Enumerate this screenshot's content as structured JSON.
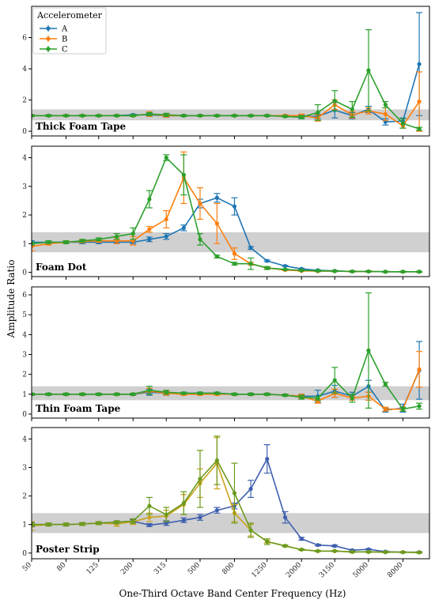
{
  "figure": {
    "ylabel": "Amplitude Ratio",
    "xlabel": "One-Third Octave Band Center Frequency (Hz)",
    "legend": {
      "title": "Accelerometer",
      "placement": "upper-left of first panel",
      "entries": [
        "A",
        "B",
        "C"
      ]
    }
  },
  "chart_data": [
    {
      "type": "line",
      "title": "Thick Foam Tape",
      "shaded_band": [
        0.7,
        1.4
      ],
      "ylim": [
        -0.3,
        8.0
      ],
      "yticks": [
        0,
        2,
        4,
        6
      ],
      "x": [
        50,
        63,
        80,
        100,
        125,
        160,
        200,
        250,
        315,
        400,
        500,
        630,
        800,
        1000,
        1250,
        1600,
        2000,
        2500,
        3150,
        4000,
        5000,
        6300,
        8000,
        10000
      ],
      "series": [
        {
          "name": "A",
          "color": "#1f77b4",
          "values": [
            1.0,
            1.0,
            1.0,
            1.0,
            1.0,
            1.0,
            1.05,
            1.05,
            1.0,
            1.0,
            1.0,
            1.0,
            1.0,
            1.0,
            1.0,
            1.0,
            0.95,
            0.95,
            1.35,
            1.0,
            1.4,
            0.6,
            0.65,
            4.3
          ],
          "err": [
            0.05,
            0.05,
            0.05,
            0.05,
            0.05,
            0.05,
            0.05,
            0.1,
            0.1,
            0.05,
            0.05,
            0.05,
            0.05,
            0.05,
            0.05,
            0.05,
            0.1,
            0.15,
            0.5,
            0.2,
            0.2,
            0.2,
            0.2,
            3.3
          ]
        },
        {
          "name": "B",
          "color": "#ff7f0e",
          "values": [
            1.0,
            1.0,
            1.0,
            1.0,
            1.0,
            1.0,
            1.0,
            1.1,
            1.0,
            1.0,
            1.0,
            1.0,
            1.0,
            1.0,
            1.0,
            1.0,
            1.0,
            0.85,
            1.7,
            1.05,
            1.3,
            1.1,
            0.35,
            1.9
          ],
          "err": [
            0.05,
            0.05,
            0.05,
            0.05,
            0.05,
            0.05,
            0.05,
            0.15,
            0.1,
            0.05,
            0.05,
            0.05,
            0.05,
            0.05,
            0.05,
            0.05,
            0.1,
            0.2,
            0.3,
            0.2,
            0.2,
            0.4,
            0.15,
            1.9
          ]
        },
        {
          "name": "C",
          "color": "#2ca02c",
          "values": [
            1.0,
            1.0,
            1.0,
            1.0,
            1.0,
            1.0,
            1.0,
            1.1,
            1.05,
            1.0,
            1.0,
            1.0,
            1.0,
            1.0,
            1.0,
            0.95,
            0.9,
            1.2,
            1.95,
            1.4,
            3.9,
            1.7,
            0.5,
            0.15
          ],
          "err": [
            0.05,
            0.05,
            0.05,
            0.05,
            0.05,
            0.05,
            0.05,
            0.1,
            0.1,
            0.05,
            0.05,
            0.05,
            0.05,
            0.05,
            0.05,
            0.05,
            0.1,
            0.5,
            0.65,
            0.5,
            2.6,
            0.2,
            0.3,
            0.1
          ]
        }
      ]
    },
    {
      "type": "line",
      "title": "Foam Dot",
      "shaded_band": [
        0.7,
        1.4
      ],
      "ylim": [
        -0.15,
        4.4
      ],
      "yticks": [
        0,
        1,
        2,
        3,
        4
      ],
      "x": [
        50,
        63,
        80,
        100,
        125,
        160,
        200,
        250,
        315,
        400,
        500,
        630,
        800,
        1000,
        1250,
        1600,
        2000,
        2500,
        3150,
        4000,
        5000,
        6300,
        8000,
        10000
      ],
      "series": [
        {
          "name": "A",
          "color": "#1f77b4",
          "values": [
            1.05,
            1.05,
            1.05,
            1.05,
            1.05,
            1.05,
            1.05,
            1.15,
            1.25,
            1.55,
            2.4,
            2.6,
            2.3,
            0.85,
            0.4,
            0.22,
            0.12,
            0.07,
            0.05,
            0.03,
            0.03,
            0.02,
            0.02,
            0.02
          ],
          "err": [
            0.05,
            0.05,
            0.05,
            0.05,
            0.05,
            0.05,
            0.05,
            0.08,
            0.1,
            0.1,
            0.15,
            0.15,
            0.3,
            0.05,
            0.03,
            0.02,
            0.02,
            0.02,
            0.02,
            0.02,
            0.02,
            0.02,
            0.02,
            0.02
          ]
        },
        {
          "name": "B",
          "color": "#ff7f0e",
          "values": [
            0.9,
            1.0,
            1.05,
            1.08,
            1.1,
            1.1,
            1.1,
            1.5,
            1.85,
            3.3,
            2.4,
            1.7,
            0.65,
            0.3,
            0.15,
            0.08,
            0.05,
            0.04,
            0.04,
            0.03,
            0.03,
            0.02,
            0.02,
            0.02
          ],
          "err": [
            0.15,
            0.05,
            0.05,
            0.05,
            0.05,
            0.1,
            0.15,
            0.1,
            0.3,
            0.9,
            0.55,
            0.7,
            0.2,
            0.05,
            0.03,
            0.02,
            0.02,
            0.02,
            0.02,
            0.02,
            0.02,
            0.02,
            0.02,
            0.02
          ]
        },
        {
          "name": "C",
          "color": "#2ca02c",
          "values": [
            1.0,
            1.05,
            1.05,
            1.1,
            1.15,
            1.25,
            1.35,
            2.55,
            4.0,
            3.4,
            1.15,
            0.55,
            0.3,
            0.3,
            0.15,
            0.1,
            0.07,
            0.05,
            0.04,
            0.03,
            0.03,
            0.02,
            0.02,
            0.02
          ],
          "err": [
            0.05,
            0.05,
            0.05,
            0.05,
            0.05,
            0.1,
            0.2,
            0.3,
            0.1,
            0.7,
            0.2,
            0.05,
            0.05,
            0.2,
            0.05,
            0.02,
            0.02,
            0.02,
            0.02,
            0.02,
            0.02,
            0.02,
            0.02,
            0.02
          ]
        }
      ]
    },
    {
      "type": "line",
      "title": "Thin Foam Tape",
      "shaded_band": [
        0.7,
        1.4
      ],
      "ylim": [
        -0.2,
        6.4
      ],
      "yticks": [
        0,
        1,
        2,
        3,
        4,
        5,
        6
      ],
      "x": [
        50,
        63,
        80,
        100,
        125,
        160,
        200,
        250,
        315,
        400,
        500,
        630,
        800,
        1000,
        1250,
        1600,
        2000,
        2500,
        3150,
        4000,
        5000,
        6300,
        8000,
        10000
      ],
      "series": [
        {
          "name": "A",
          "color": "#1f77b4",
          "values": [
            1.0,
            1.0,
            1.0,
            1.0,
            1.0,
            1.0,
            1.0,
            1.1,
            1.05,
            1.05,
            1.05,
            1.05,
            1.0,
            1.0,
            1.0,
            0.95,
            0.9,
            0.9,
            1.15,
            0.9,
            1.4,
            0.2,
            0.3,
            2.2
          ],
          "err": [
            0.05,
            0.05,
            0.05,
            0.05,
            0.05,
            0.05,
            0.05,
            0.15,
            0.1,
            0.05,
            0.05,
            0.05,
            0.05,
            0.05,
            0.05,
            0.05,
            0.1,
            0.3,
            0.3,
            0.2,
            0.3,
            0.1,
            0.2,
            1.45
          ]
        },
        {
          "name": "B",
          "color": "#ff7f0e",
          "values": [
            1.0,
            1.0,
            1.0,
            1.0,
            1.0,
            1.0,
            1.0,
            1.15,
            1.05,
            1.0,
            1.0,
            1.0,
            1.0,
            1.0,
            1.0,
            0.95,
            0.9,
            0.65,
            1.05,
            0.8,
            0.9,
            0.25,
            0.25,
            2.25
          ],
          "err": [
            0.05,
            0.05,
            0.05,
            0.05,
            0.05,
            0.05,
            0.05,
            0.15,
            0.1,
            0.05,
            0.05,
            0.05,
            0.05,
            0.05,
            0.05,
            0.05,
            0.1,
            0.1,
            0.2,
            0.1,
            0.2,
            0.1,
            0.1,
            0.9
          ]
        },
        {
          "name": "C",
          "color": "#2ca02c",
          "values": [
            1.0,
            1.0,
            1.0,
            1.0,
            1.0,
            1.0,
            1.0,
            1.2,
            1.1,
            1.05,
            1.05,
            1.05,
            1.0,
            1.0,
            1.0,
            0.95,
            0.85,
            0.8,
            1.7,
            0.8,
            3.2,
            1.5,
            0.25,
            0.4
          ],
          "err": [
            0.05,
            0.05,
            0.05,
            0.05,
            0.05,
            0.05,
            0.05,
            0.2,
            0.1,
            0.05,
            0.05,
            0.05,
            0.05,
            0.05,
            0.05,
            0.05,
            0.1,
            0.1,
            0.65,
            0.2,
            2.9,
            0.1,
            0.1,
            0.15
          ]
        }
      ]
    },
    {
      "type": "line",
      "title": "Poster Strip",
      "shaded_band": [
        0.7,
        1.4
      ],
      "ylim": [
        -0.2,
        4.4
      ],
      "yticks": [
        0,
        1,
        2,
        3,
        4
      ],
      "x": [
        50,
        63,
        80,
        100,
        125,
        160,
        200,
        250,
        315,
        400,
        500,
        630,
        800,
        1000,
        1250,
        1600,
        2000,
        2500,
        3150,
        4000,
        5000,
        6300,
        8000,
        10000
      ],
      "series": [
        {
          "name": "A",
          "color": "#3f5fb0",
          "values": [
            1.0,
            1.0,
            1.0,
            1.02,
            1.05,
            1.08,
            1.12,
            0.98,
            1.05,
            1.15,
            1.25,
            1.5,
            1.65,
            2.25,
            3.3,
            1.25,
            0.5,
            0.28,
            0.25,
            0.1,
            0.13,
            0.05,
            0.03,
            0.03
          ],
          "err": [
            0.08,
            0.05,
            0.05,
            0.05,
            0.05,
            0.05,
            0.05,
            0.05,
            0.08,
            0.08,
            0.1,
            0.1,
            0.1,
            0.3,
            0.5,
            0.2,
            0.05,
            0.03,
            0.03,
            0.02,
            0.02,
            0.02,
            0.02,
            0.02
          ]
        },
        {
          "name": "B",
          "color": "#c9a21a",
          "values": [
            0.95,
            1.0,
            1.0,
            1.02,
            1.05,
            1.02,
            1.1,
            1.25,
            1.3,
            1.7,
            2.45,
            3.15,
            1.4,
            0.8,
            0.4,
            0.25,
            0.12,
            0.07,
            0.07,
            0.04,
            0.04,
            0.03,
            0.03,
            0.02
          ],
          "err": [
            0.15,
            0.05,
            0.05,
            0.05,
            0.05,
            0.08,
            0.1,
            0.15,
            0.2,
            0.35,
            0.5,
            0.9,
            0.3,
            0.2,
            0.05,
            0.03,
            0.02,
            0.02,
            0.02,
            0.02,
            0.02,
            0.02,
            0.02,
            0.02
          ]
        },
        {
          "name": "C",
          "color": "#6b9a1c",
          "values": [
            1.0,
            1.0,
            1.0,
            1.02,
            1.05,
            1.08,
            1.12,
            1.65,
            1.35,
            1.75,
            2.6,
            3.25,
            2.1,
            0.8,
            0.4,
            0.25,
            0.12,
            0.07,
            0.07,
            0.04,
            0.04,
            0.03,
            0.03,
            0.02
          ],
          "err": [
            0.05,
            0.05,
            0.05,
            0.05,
            0.05,
            0.05,
            0.08,
            0.3,
            0.25,
            0.4,
            1.0,
            0.85,
            1.05,
            0.25,
            0.1,
            0.03,
            0.02,
            0.02,
            0.02,
            0.02,
            0.02,
            0.02,
            0.02,
            0.02
          ]
        }
      ]
    }
  ],
  "xticks": {
    "values": [
      50,
      80,
      125,
      200,
      315,
      500,
      800,
      1250,
      2000,
      3150,
      5000,
      8000
    ],
    "labels": [
      "50",
      "80",
      "125",
      "200",
      "315",
      "500",
      "800",
      "1250",
      "2000",
      "3150",
      "5000",
      "8000"
    ]
  }
}
